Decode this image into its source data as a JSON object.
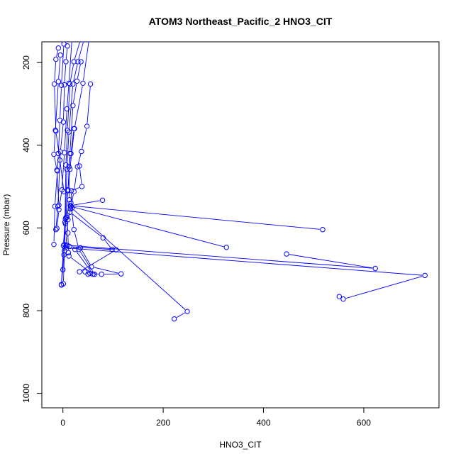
{
  "chart_data": {
    "type": "line",
    "title": "ATOM3 Northeast_Pacific_2 HNO3_CIT",
    "xlabel": "HNO3_CIT",
    "ylabel": "Pressure (mbar)",
    "xlim": [
      -42,
      750
    ],
    "ylim": [
      1035,
      150
    ],
    "y_reversed": true,
    "x_ticks": [
      0,
      200,
      400,
      600
    ],
    "y_ticks": [
      200,
      400,
      600,
      800,
      1000
    ],
    "color": "#0000ff",
    "marker": "open-circle",
    "series": [
      {
        "x": [
          52,
          40,
          23,
          14,
          10,
          5,
          3,
          1
        ],
        "y": [
          145,
          250,
          360,
          458,
          508,
          590,
          655,
          735
        ]
      },
      {
        "x": [
          42,
          30,
          20,
          12,
          8,
          5,
          2,
          -3
        ],
        "y": [
          145,
          198,
          252,
          368,
          458,
          578,
          665,
          737
        ]
      },
      {
        "x": [
          35,
          22,
          14,
          9,
          6,
          4,
          1,
          -3
        ],
        "y": [
          145,
          198,
          252,
          364,
          448,
          586,
          643,
          738
        ]
      },
      {
        "x": [
          18,
          12,
          8,
          3,
          -2,
          -8,
          -12
        ],
        "y": [
          145,
          250,
          312,
          418,
          508,
          556,
          601
        ]
      },
      {
        "x": [
          9,
          6,
          3,
          1,
          -5,
          -10,
          -14
        ],
        "y": [
          160,
          198,
          254,
          344,
          416,
          548,
          604
        ]
      },
      {
        "x": [
          2,
          -3,
          -6,
          -9,
          -11,
          -16,
          -18
        ],
        "y": [
          155,
          255,
          340,
          420,
          462,
          548,
          640
        ]
      },
      {
        "x": [
          -5,
          -9,
          -15,
          -18,
          -12,
          -8
        ],
        "y": [
          182,
          246,
          364,
          422,
          460,
          545
        ]
      },
      {
        "x": [
          -9,
          -14,
          -17,
          -14,
          -6,
          2
        ],
        "y": [
          165,
          192,
          252,
          366,
          436,
          512
        ]
      },
      {
        "x": [
          36,
          28,
          20,
          14,
          10,
          6,
          3,
          0
        ],
        "y": [
          198,
          245,
          304,
          420,
          510,
          575,
          640,
          701
        ]
      },
      {
        "x": [
          55,
          48,
          37,
          29,
          22,
          15,
          10,
          6
        ],
        "y": [
          252,
          354,
          415,
          452,
          512,
          554,
          580,
          643
        ]
      },
      {
        "x": [
          22,
          16,
          12,
          13,
          8,
          10,
          11
        ],
        "y": [
          360,
          420,
          452,
          532,
          574,
          612,
          660
        ]
      },
      {
        "x": [
          33,
          38,
          17,
          16,
          22,
          32,
          63
        ],
        "y": [
          450,
          500,
          510,
          540,
          604,
          652,
          712
        ]
      },
      {
        "x": [
          79,
          15,
          518
        ],
        "y": [
          533,
          546,
          604
        ]
      },
      {
        "x": [
          16,
          326
        ],
        "y": [
          548,
          647
        ]
      },
      {
        "x": [
          18,
          248,
          222
        ],
        "y": [
          552,
          802,
          820
        ]
      },
      {
        "x": [
          14,
          80,
          98
        ],
        "y": [
          562,
          624,
          652
        ]
      },
      {
        "x": [
          9,
          623,
          446
        ],
        "y": [
          642,
          698,
          663
        ]
      },
      {
        "x": [
          4,
          722,
          559,
          551
        ],
        "y": [
          648,
          715,
          772,
          766
        ]
      },
      {
        "x": [
          13,
          106,
          33
        ],
        "y": [
          645,
          653,
          706
        ]
      },
      {
        "x": [
          35,
          57,
          116,
          77,
          54,
          50,
          44
        ],
        "y": [
          648,
          694,
          711,
          712,
          710,
          712,
          706
        ]
      },
      {
        "x": [
          24,
          60,
          12
        ],
        "y": [
          652,
          712,
          668
        ]
      }
    ]
  }
}
